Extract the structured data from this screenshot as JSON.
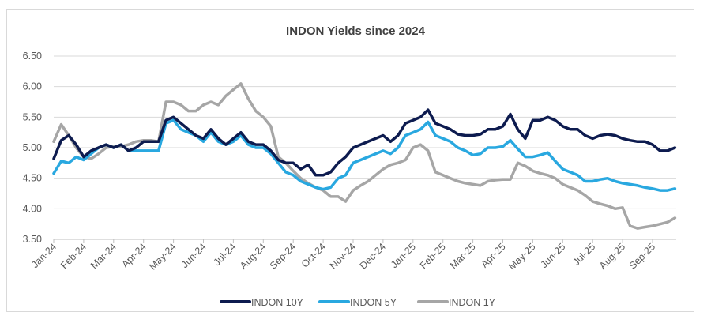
{
  "chart_data": {
    "type": "line",
    "title": "INDON Yields since 2024",
    "xlabel": "",
    "ylabel": "",
    "ylim": [
      3.5,
      6.5
    ],
    "yticks": [
      "6.50",
      "6.00",
      "5.50",
      "5.00",
      "4.50",
      "4.00",
      "3.50"
    ],
    "ytick_values": [
      6.5,
      6.0,
      5.5,
      5.0,
      4.5,
      4.0,
      3.5
    ],
    "xticks": [
      "Jan-24",
      "Feb-24",
      "Mar-24",
      "Apr-24",
      "May-24",
      "Jun-24",
      "Jul-24",
      "Aug-24",
      "Sep-24",
      "Oct-24",
      "Nov-24",
      "Dec-24",
      "Jan-25",
      "Feb-25",
      "Mar-25",
      "Apr-25",
      "May-25",
      "Jun-25",
      "Jul-25",
      "Aug-25",
      "Sep-25"
    ],
    "x_unit": "months since Jan-24",
    "xlim": [
      0,
      20.75
    ],
    "grid": true,
    "legend_position": "bottom",
    "x": [
      0,
      0.25,
      0.5,
      0.75,
      1,
      1.25,
      1.5,
      1.75,
      2,
      2.25,
      2.5,
      2.75,
      3,
      3.25,
      3.5,
      3.75,
      4,
      4.25,
      4.5,
      4.75,
      5,
      5.25,
      5.5,
      5.75,
      6,
      6.25,
      6.5,
      6.75,
      7,
      7.25,
      7.5,
      7.75,
      8,
      8.25,
      8.5,
      8.75,
      9,
      9.25,
      9.5,
      9.75,
      10,
      10.25,
      10.5,
      10.75,
      11,
      11.25,
      11.5,
      11.75,
      12,
      12.25,
      12.5,
      12.75,
      13,
      13.25,
      13.5,
      13.75,
      14,
      14.25,
      14.5,
      14.75,
      15,
      15.25,
      15.5,
      15.75,
      16,
      16.25,
      16.5,
      16.75,
      17,
      17.25,
      17.5,
      17.75,
      18,
      18.25,
      18.5,
      18.75,
      19,
      19.25,
      19.5,
      19.75,
      20,
      20.25,
      20.5,
      20.75
    ],
    "series": [
      {
        "name": "INDON 10Y",
        "color": "#0d1b4f",
        "values": [
          4.82,
          5.12,
          5.2,
          5.05,
          4.85,
          4.95,
          5.0,
          5.05,
          5.0,
          5.05,
          4.95,
          5.0,
          5.1,
          5.1,
          5.1,
          5.45,
          5.5,
          5.4,
          5.3,
          5.2,
          5.15,
          5.3,
          5.15,
          5.05,
          5.15,
          5.25,
          5.1,
          5.05,
          5.05,
          4.95,
          4.8,
          4.75,
          4.75,
          4.65,
          4.72,
          4.55,
          4.55,
          4.6,
          4.75,
          4.85,
          5.0,
          5.05,
          5.1,
          5.15,
          5.2,
          5.1,
          5.2,
          5.4,
          5.45,
          5.5,
          5.62,
          5.4,
          5.35,
          5.3,
          5.22,
          5.2,
          5.2,
          5.22,
          5.3,
          5.3,
          5.35,
          5.55,
          5.3,
          5.15,
          5.45,
          5.45,
          5.5,
          5.45,
          5.35,
          5.3,
          5.3,
          5.2,
          5.15,
          5.2,
          5.22,
          5.2,
          5.15,
          5.12,
          5.1,
          5.1,
          5.05,
          4.95,
          4.95,
          5.0
        ]
      },
      {
        "name": "INDON 5Y",
        "color": "#29a8e0",
        "values": [
          4.58,
          4.78,
          4.75,
          4.85,
          4.8,
          4.9,
          5.0,
          5.05,
          5.0,
          5.05,
          4.95,
          4.95,
          4.95,
          4.95,
          4.95,
          5.4,
          5.45,
          5.3,
          5.25,
          5.2,
          5.1,
          5.25,
          5.1,
          5.05,
          5.1,
          5.2,
          5.05,
          5.0,
          5.0,
          4.9,
          4.75,
          4.6,
          4.55,
          4.45,
          4.4,
          4.35,
          4.32,
          4.35,
          4.5,
          4.55,
          4.75,
          4.8,
          4.85,
          4.9,
          4.95,
          4.9,
          5.0,
          5.2,
          5.25,
          5.3,
          5.42,
          5.2,
          5.15,
          5.1,
          5.0,
          4.95,
          4.88,
          4.9,
          5.0,
          5.0,
          5.02,
          5.12,
          4.98,
          4.85,
          4.85,
          4.88,
          4.92,
          4.78,
          4.65,
          4.6,
          4.55,
          4.45,
          4.45,
          4.48,
          4.5,
          4.45,
          4.42,
          4.4,
          4.38,
          4.35,
          4.33,
          4.3,
          4.3,
          4.33
        ]
      },
      {
        "name": "INDON 1Y",
        "color": "#a6a6a6",
        "values": [
          5.1,
          5.38,
          5.2,
          5.0,
          4.85,
          4.82,
          4.9,
          5.0,
          5.02,
          5.02,
          5.05,
          5.1,
          5.12,
          5.12,
          5.1,
          5.75,
          5.75,
          5.7,
          5.6,
          5.6,
          5.7,
          5.75,
          5.7,
          5.85,
          5.95,
          6.05,
          5.8,
          5.6,
          5.5,
          5.35,
          4.85,
          4.75,
          4.62,
          4.5,
          4.42,
          4.35,
          4.3,
          4.2,
          4.2,
          4.12,
          4.3,
          4.38,
          4.45,
          4.55,
          4.65,
          4.72,
          4.75,
          4.8,
          5.0,
          5.05,
          4.95,
          4.6,
          4.55,
          4.5,
          4.45,
          4.42,
          4.4,
          4.38,
          4.45,
          4.47,
          4.48,
          4.48,
          4.75,
          4.7,
          4.62,
          4.58,
          4.55,
          4.5,
          4.4,
          4.35,
          4.3,
          4.22,
          4.12,
          4.08,
          4.05,
          4.0,
          4.02,
          3.72,
          3.68,
          3.7,
          3.72,
          3.75,
          3.78,
          3.85
        ]
      }
    ]
  }
}
